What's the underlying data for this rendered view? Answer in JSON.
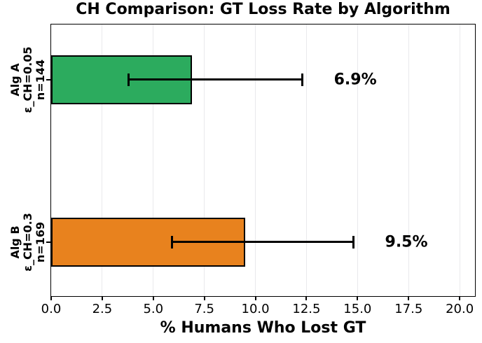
{
  "chart_data": {
    "type": "bar",
    "orientation": "horizontal",
    "title": "CH Comparison: GT Loss Rate by Algorithm",
    "xlabel": "% Humans Who Lost GT",
    "xlim": [
      0,
      20.75
    ],
    "xticks": [
      {
        "v": 0.0,
        "label": "0.0"
      },
      {
        "v": 2.5,
        "label": "2.5"
      },
      {
        "v": 5.0,
        "label": "5.0"
      },
      {
        "v": 7.5,
        "label": "7.5"
      },
      {
        "v": 10.0,
        "label": "10.0"
      },
      {
        "v": 12.5,
        "label": "12.5"
      },
      {
        "v": 15.0,
        "label": "15.0"
      },
      {
        "v": 17.5,
        "label": "17.5"
      },
      {
        "v": 20.0,
        "label": "20.0"
      }
    ],
    "grid": {
      "axis": "x",
      "color": "#e9e9ec",
      "on": true
    },
    "legend": "none",
    "bars": [
      {
        "category_lines": [
          "Alg A",
          "ε_CH=0.05",
          "n=144"
        ],
        "value": 6.9,
        "value_label": "6.9%",
        "ci_low": 3.8,
        "ci_high": 12.3,
        "fill": "#2cab5e"
      },
      {
        "category_lines": [
          "Alg B",
          "ε_CH=0.3",
          "n=169"
        ],
        "value": 9.5,
        "value_label": "9.5%",
        "ci_low": 5.9,
        "ci_high": 14.8,
        "fill": "#e8821e"
      }
    ],
    "bar_edge_color": "#000000",
    "error_color": "#000000",
    "frame_color": "#000000",
    "tick_color": "#000000"
  }
}
